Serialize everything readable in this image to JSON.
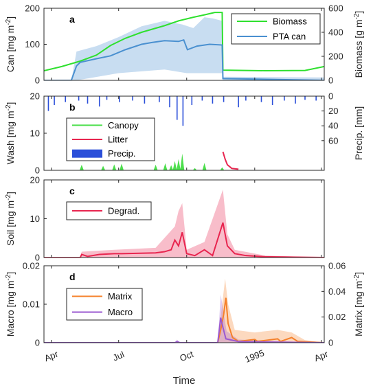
{
  "figure": {
    "xlabel": "Time",
    "x_ticks": [
      "Apr",
      "Jul",
      "Oct",
      "1995",
      "Apr"
    ],
    "x_tick_dates": [
      "1994-04-01",
      "1994-07-01",
      "1994-10-01",
      "1995-01-01",
      "1995-04-01"
    ],
    "x_range": [
      "1994-03-22",
      "1995-04-05"
    ]
  },
  "chart_data": [
    {
      "panel": "a",
      "type": "line",
      "ylabel": "Can [mg m^{-2}]",
      "ylim": [
        0,
        200
      ],
      "y_ticks": [
        0,
        100,
        200
      ],
      "ylabel_right": "Biomass [g m^{-2}]",
      "ylim_right": [
        0,
        600
      ],
      "y_ticks_right": [
        0,
        200,
        400,
        600
      ],
      "legend_position": "top-right",
      "series": [
        {
          "name": "Biomass",
          "axis": "right",
          "color": "#2ee02e",
          "points": [
            [
              "1994-03-22",
              80
            ],
            [
              "1994-04-15",
              115
            ],
            [
              "1994-05-10",
              160
            ],
            [
              "1994-06-01",
              210
            ],
            [
              "1994-06-20",
              290
            ],
            [
              "1994-07-10",
              350
            ],
            [
              "1994-08-01",
              400
            ],
            [
              "1994-09-01",
              455
            ],
            [
              "1994-09-20",
              495
            ],
            [
              "1994-10-10",
              525
            ],
            [
              "1994-10-25",
              545
            ],
            [
              "1994-11-08",
              565
            ],
            [
              "1994-11-18",
              565
            ],
            [
              "1994-11-19",
              85
            ],
            [
              "1995-01-15",
              80
            ],
            [
              "1995-03-10",
              82
            ],
            [
              "1995-04-05",
              115
            ]
          ]
        },
        {
          "name": "PTA can",
          "axis": "left",
          "color": "#4a90d0",
          "band": true,
          "points": [
            [
              "1994-03-22",
              0
            ],
            [
              "1994-04-28",
              0
            ],
            [
              "1994-05-05",
              40
            ],
            [
              "1994-05-10",
              50
            ],
            [
              "1994-06-01",
              60
            ],
            [
              "1994-06-20",
              68
            ],
            [
              "1994-07-10",
              85
            ],
            [
              "1994-08-01",
              100
            ],
            [
              "1994-08-15",
              105
            ],
            [
              "1994-09-01",
              110
            ],
            [
              "1994-09-20",
              108
            ],
            [
              "1994-09-27",
              112
            ],
            [
              "1994-10-02",
              85
            ],
            [
              "1994-10-15",
              95
            ],
            [
              "1994-11-01",
              100
            ],
            [
              "1994-11-18",
              98
            ],
            [
              "1994-11-19",
              5
            ],
            [
              "1995-04-05",
              0
            ]
          ],
          "band_lower": [
            [
              "1994-03-22",
              0
            ],
            [
              "1994-05-05",
              0
            ],
            [
              "1994-07-01",
              20
            ],
            [
              "1994-09-01",
              30
            ],
            [
              "1994-10-01",
              20
            ],
            [
              "1994-11-18",
              20
            ],
            [
              "1994-11-19",
              0
            ],
            [
              "1995-04-05",
              0
            ]
          ],
          "band_upper": [
            [
              "1994-03-22",
              0
            ],
            [
              "1994-04-28",
              0
            ],
            [
              "1994-05-05",
              80
            ],
            [
              "1994-06-01",
              95
            ],
            [
              "1994-07-01",
              120
            ],
            [
              "1994-08-01",
              150
            ],
            [
              "1994-09-01",
              165
            ],
            [
              "1994-09-25",
              155
            ],
            [
              "1994-10-10",
              145
            ],
            [
              "1994-10-25",
              175
            ],
            [
              "1994-11-05",
              172
            ],
            [
              "1994-11-18",
              165
            ],
            [
              "1994-11-19",
              10
            ],
            [
              "1995-04-05",
              8
            ]
          ]
        }
      ]
    },
    {
      "panel": "b",
      "type": "area",
      "ylabel": "Wash [mg m^{-2}]",
      "ylim": [
        0,
        20
      ],
      "y_ticks": [
        0,
        10,
        20
      ],
      "ylabel_right": "Precip. [mm]",
      "ylim_right": [
        0,
        100
      ],
      "y_ticks_right": [
        0,
        20,
        40,
        60
      ],
      "y_right_reversed": true,
      "legend_position": "top-left",
      "series": [
        {
          "name": "Canopy",
          "color": "#4ddf4d",
          "type": "area",
          "points": [
            [
              "1994-05-12",
              1.5
            ],
            [
              "1994-06-10",
              1.2
            ],
            [
              "1994-06-25",
              1.6
            ],
            [
              "1994-07-05",
              1.8
            ],
            [
              "1994-08-20",
              1.5
            ],
            [
              "1994-09-02",
              1.9
            ],
            [
              "1994-09-10",
              1.4
            ],
            [
              "1994-09-15",
              2.5
            ],
            [
              "1994-09-20",
              3.0
            ],
            [
              "1994-09-25",
              4.5
            ],
            [
              "1994-10-12",
              0.6
            ],
            [
              "1994-10-25",
              2.0
            ],
            [
              "1994-11-18",
              0.8
            ]
          ]
        },
        {
          "name": "Litter",
          "color": "#e8254f",
          "type": "line",
          "points": [
            [
              "1994-11-19",
              5.0
            ],
            [
              "1994-11-22",
              3.0
            ],
            [
              "1994-11-25",
              1.5
            ],
            [
              "1994-12-01",
              0.5
            ],
            [
              "1994-12-10",
              0.3
            ]
          ]
        },
        {
          "name": "Precip.",
          "color": "#2b4fd9",
          "type": "bar",
          "axis": "right",
          "points": [
            [
              "1994-03-28",
              20
            ],
            [
              "1994-04-05",
              12
            ],
            [
              "1994-04-20",
              8
            ],
            [
              "1994-05-08",
              6
            ],
            [
              "1994-05-20",
              10
            ],
            [
              "1994-06-05",
              14
            ],
            [
              "1994-06-15",
              5
            ],
            [
              "1994-07-02",
              8
            ],
            [
              "1994-07-20",
              6
            ],
            [
              "1994-08-05",
              10
            ],
            [
              "1994-08-25",
              8
            ],
            [
              "1994-09-08",
              15
            ],
            [
              "1994-09-18",
              32
            ],
            [
              "1994-09-26",
              40
            ],
            [
              "1994-10-08",
              12
            ],
            [
              "1994-10-22",
              6
            ],
            [
              "1994-11-05",
              10
            ],
            [
              "1994-11-20",
              8
            ],
            [
              "1994-12-10",
              15
            ],
            [
              "1994-12-20",
              6
            ],
            [
              "1995-01-10",
              8
            ],
            [
              "1995-01-25",
              12
            ],
            [
              "1995-02-10",
              6
            ],
            [
              "1995-02-25",
              10
            ],
            [
              "1995-03-10",
              5
            ],
            [
              "1995-03-25",
              6
            ]
          ]
        }
      ]
    },
    {
      "panel": "c",
      "type": "line",
      "ylabel": "Soil [mg m^{-2}]",
      "ylim": [
        0,
        20
      ],
      "y_ticks": [
        0,
        10,
        20
      ],
      "legend_position": "top-left",
      "series": [
        {
          "name": "Degrad.",
          "color": "#e8254f",
          "band": true,
          "points": [
            [
              "1994-03-22",
              0
            ],
            [
              "1994-05-10",
              0
            ],
            [
              "1994-05-12",
              0.8
            ],
            [
              "1994-05-20",
              0.3
            ],
            [
              "1994-06-05",
              0.8
            ],
            [
              "1994-06-25",
              1.0
            ],
            [
              "1994-07-05",
              1.0
            ],
            [
              "1994-08-20",
              1.2
            ],
            [
              "1994-09-01",
              1.5
            ],
            [
              "1994-09-10",
              2.0
            ],
            [
              "1994-09-15",
              4.5
            ],
            [
              "1994-09-20",
              3.0
            ],
            [
              "1994-09-25",
              6.5
            ],
            [
              "1994-10-01",
              1.0
            ],
            [
              "1994-10-12",
              0.5
            ],
            [
              "1994-10-25",
              2.0
            ],
            [
              "1994-11-05",
              0.5
            ],
            [
              "1994-11-19",
              9.0
            ],
            [
              "1994-11-25",
              3.0
            ],
            [
              "1994-12-05",
              1.0
            ],
            [
              "1994-12-20",
              0.5
            ],
            [
              "1995-01-15",
              0.2
            ],
            [
              "1995-04-05",
              0
            ]
          ],
          "band_upper": [
            [
              "1994-03-22",
              0
            ],
            [
              "1994-05-10",
              0
            ],
            [
              "1994-05-12",
              1.5
            ],
            [
              "1994-06-25",
              2.0
            ],
            [
              "1994-08-20",
              2.5
            ],
            [
              "1994-09-15",
              8.0
            ],
            [
              "1994-09-20",
              12.0
            ],
            [
              "1994-09-25",
              14.0
            ],
            [
              "1994-10-01",
              2.0
            ],
            [
              "1994-10-25",
              4.0
            ],
            [
              "1994-11-19",
              17.5
            ],
            [
              "1994-11-25",
              6.0
            ],
            [
              "1994-12-05",
              2.0
            ],
            [
              "1995-01-15",
              0.5
            ],
            [
              "1995-04-05",
              0
            ]
          ]
        }
      ]
    },
    {
      "panel": "d",
      "type": "line",
      "ylabel": "Macro [mg m^{-2}]",
      "ylim": [
        0,
        0.02
      ],
      "y_ticks": [
        0,
        0.01,
        0.02
      ],
      "ylabel_right": "Matrix [mg m^{-2}]",
      "ylim_right": [
        0,
        0.06
      ],
      "y_ticks_right": [
        0,
        0.02,
        0.04,
        0.06
      ],
      "legend_position": "top-left",
      "series": [
        {
          "name": "Matrix",
          "color": "#f5802a",
          "axis": "right",
          "band": true,
          "points": [
            [
              "1994-03-22",
              0
            ],
            [
              "1994-11-12",
              0
            ],
            [
              "1994-11-16",
              0.01
            ],
            [
              "1994-11-20",
              0.022
            ],
            [
              "1994-11-23",
              0.035
            ],
            [
              "1994-11-26",
              0.015
            ],
            [
              "1994-12-02",
              0.004
            ],
            [
              "1994-12-10",
              0.001
            ],
            [
              "1995-01-01",
              0.0025
            ],
            [
              "1995-01-05",
              0.001
            ],
            [
              "1995-02-01",
              0.003
            ],
            [
              "1995-02-05",
              0.001
            ],
            [
              "1995-02-20",
              0.004
            ],
            [
              "1995-02-28",
              0.001
            ],
            [
              "1995-04-05",
              0
            ]
          ],
          "band_upper": [
            [
              "1994-03-22",
              0
            ],
            [
              "1994-11-12",
              0
            ],
            [
              "1994-11-18",
              0.03
            ],
            [
              "1994-11-22",
              0.05
            ],
            [
              "1994-11-26",
              0.03
            ],
            [
              "1994-12-05",
              0.01
            ],
            [
              "1995-01-01",
              0.008
            ],
            [
              "1995-02-01",
              0.01
            ],
            [
              "1995-02-20",
              0.008
            ],
            [
              "1995-03-10",
              0.002
            ],
            [
              "1995-04-05",
              0
            ]
          ]
        },
        {
          "name": "Macro",
          "color": "#9b59d0",
          "axis": "left",
          "band": true,
          "points": [
            [
              "1994-03-22",
              0
            ],
            [
              "1994-09-15",
              0
            ],
            [
              "1994-09-18",
              0.0003
            ],
            [
              "1994-09-22",
              0
            ],
            [
              "1994-11-12",
              0
            ],
            [
              "1994-11-16",
              0.0065
            ],
            [
              "1994-11-19",
              0.004
            ],
            [
              "1994-11-23",
              0.001
            ],
            [
              "1994-12-10",
              0.0003
            ],
            [
              "1995-01-01",
              0.0002
            ],
            [
              "1995-04-05",
              0
            ]
          ],
          "band_upper": [
            [
              "1994-03-22",
              0
            ],
            [
              "1994-09-15",
              0
            ],
            [
              "1994-09-18",
              0.0008
            ],
            [
              "1994-09-22",
              0
            ],
            [
              "1994-11-12",
              0
            ],
            [
              "1994-11-16",
              0.0125
            ],
            [
              "1994-11-19",
              0.009
            ],
            [
              "1994-11-24",
              0.003
            ],
            [
              "1994-12-10",
              0.0008
            ],
            [
              "1995-04-05",
              0
            ]
          ]
        }
      ]
    }
  ]
}
